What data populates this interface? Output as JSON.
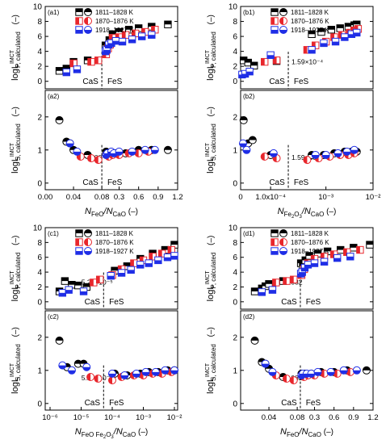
{
  "figure": {
    "legend_entries": [
      "1811–1828 K",
      "1870–1876 K",
      "1918–1927 K"
    ],
    "legend_colors": [
      "#000000",
      "#e8262c",
      "#1f2ee6"
    ],
    "region_labels": [
      "CaS",
      "FeS"
    ],
    "y_unit": "(–)",
    "ylabel_P_base": "logL",
    "ylabel_P_sup": "IMCT",
    "ylabel_P_sub": "P, calculated",
    "ylabel_S_base": "logL",
    "ylabel_S_sup": "IMCT",
    "ylabel_S_sub": "S, calculated",
    "xlabels": {
      "a": {
        "n1": "N",
        "s1": "FeO",
        "mid": "/N",
        "s2": "CaO",
        "unit": "(–)"
      },
      "b": {
        "n1": "N",
        "s1": "Fe",
        "s1a": "2",
        "s1b": "O",
        "s1c": "3",
        "mid": "/N",
        "s2": "CaO",
        "unit": "(–)"
      },
      "c": {
        "n1": "N",
        "s1": "FeO Fe",
        "s1a": "2",
        "s1b": "O",
        "s1c": "3",
        "mid": "/N",
        "s2": "CaO",
        "unit": "(–)"
      },
      "d": {
        "n1": "N",
        "s1": "FeO",
        "mid": "/N",
        "s2": "CaO",
        "unit": "(–)"
      }
    }
  },
  "chart_data": [
    {
      "panel": "a1",
      "type": "scatter",
      "ylim": [
        -1,
        10
      ],
      "yticks": [
        0,
        2,
        4,
        6,
        8,
        10
      ],
      "annotation": "0.08",
      "series": [
        {
          "name": "1811–1828 K",
          "x": [
            0.02,
            0.03,
            0.04,
            0.06,
            0.09,
            0.12,
            0.15,
            0.2,
            0.3,
            0.45,
            0.6,
            0.8,
            1.05
          ],
          "y": [
            1.4,
            1.7,
            2.6,
            2.8,
            4.8,
            4.6,
            5.5,
            6.3,
            6.6,
            6.9,
            7.1,
            7.3,
            7.6
          ]
        },
        {
          "name": "1870–1876 K",
          "x": [
            0.04,
            0.065,
            0.075,
            0.1,
            0.13,
            0.16,
            0.2,
            0.3,
            0.4,
            0.55,
            0.7,
            0.85
          ],
          "y": [
            2.4,
            2.6,
            2.8,
            3.6,
            4.4,
            4.9,
            5.8,
            5.9,
            6.2,
            6.4,
            6.6,
            6.9
          ]
        },
        {
          "name": "1918–1927 K",
          "x": [
            0.03,
            0.045,
            0.09,
            0.11,
            0.14,
            0.18,
            0.25,
            0.35,
            0.5,
            0.65,
            0.8
          ],
          "y": [
            1.2,
            1.6,
            4.0,
            4.2,
            4.9,
            5.1,
            5.4,
            5.3,
            5.6,
            6.0,
            6.2
          ]
        }
      ]
    },
    {
      "panel": "a2",
      "type": "scatter",
      "ylim": [
        -0.2,
        2.8
      ],
      "yticks": [
        0,
        1,
        2
      ],
      "annotation": "0.08",
      "xticklabels": [
        "0.00",
        "0.04",
        "0.08",
        "0.3",
        "0.6",
        "0.9",
        "1.2"
      ],
      "series": [
        {
          "name": "1811–1828 K",
          "x": [
            0.02,
            0.03,
            0.035,
            0.04,
            0.06,
            0.1,
            0.15,
            0.25,
            0.4,
            0.6,
            0.8,
            1.05
          ],
          "y": [
            1.9,
            1.25,
            1.2,
            1.0,
            0.85,
            0.95,
            0.9,
            0.9,
            0.9,
            1.0,
            1.0,
            1.0
          ]
        },
        {
          "name": "1870–1876 K",
          "x": [
            0.05,
            0.065,
            0.075,
            0.1,
            0.14,
            0.2,
            0.3,
            0.45,
            0.6,
            0.75
          ],
          "y": [
            0.8,
            0.75,
            0.7,
            0.85,
            0.8,
            0.85,
            0.85,
            0.9,
            0.9,
            0.95
          ]
        },
        {
          "name": "1918–1927 K",
          "x": [
            0.035,
            0.045,
            0.1,
            0.12,
            0.18,
            0.22,
            0.3,
            0.5,
            0.7,
            0.85
          ],
          "y": [
            1.2,
            0.95,
            0.85,
            0.9,
            0.95,
            0.9,
            0.95,
            0.95,
            1.0,
            1.0
          ]
        }
      ]
    },
    {
      "panel": "b1",
      "type": "scatter",
      "ylim": [
        -1,
        10
      ],
      "yticks": [
        0,
        2,
        4,
        6,
        8,
        10
      ],
      "annotation": "1.59×10⁻⁴",
      "series": [
        {
          "name": "1811–1828 K",
          "x": [
            1e-05,
            2.5e-05,
            4.5e-05,
            0.00012,
            0.0005,
            0.0008,
            0.0013,
            0.002,
            0.003,
            0.004,
            0.0045
          ],
          "y": [
            2.8,
            2.5,
            2.1,
            2.7,
            6.3,
            6.6,
            6.9,
            7.1,
            7.3,
            7.5,
            7.6
          ]
        },
        {
          "name": "1870–1876 K",
          "x": [
            8e-05,
            0.00012,
            0.0004,
            0.0006,
            0.001,
            0.0015,
            0.0022,
            0.0032,
            0.004,
            0.0048
          ],
          "y": [
            2.6,
            2.8,
            4.2,
            4.8,
            5.3,
            5.9,
            6.2,
            6.5,
            6.8,
            7.0
          ]
        },
        {
          "name": "1918–1927 K",
          "x": [
            5e-06,
            1.5e-05,
            3e-05,
            0.0001,
            0.0005,
            0.0009,
            0.0016,
            0.0025,
            0.0035,
            0.0045
          ],
          "y": [
            0.9,
            1.0,
            1.3,
            3.5,
            4.2,
            5.1,
            5.3,
            5.9,
            6.3,
            6.5
          ]
        }
      ]
    },
    {
      "panel": "b2",
      "type": "scatter",
      "ylim": [
        -0.2,
        2.8
      ],
      "yticks": [
        0,
        1,
        2
      ],
      "annotation": "1.59×10⁻⁴",
      "xticklabels": [
        "0",
        "1.0x10⁻⁴",
        "10⁻³",
        "10⁻²"
      ],
      "series": [
        {
          "name": "1811–1828 K",
          "x": [
            1e-05,
            2.5e-05,
            4e-05,
            0.0001,
            0.0005,
            0.0009,
            0.0015,
            0.0025,
            0.0035,
            0.0045
          ],
          "y": [
            1.9,
            1.2,
            1.3,
            0.85,
            0.85,
            0.85,
            0.9,
            0.95,
            0.95,
            0.95
          ]
        },
        {
          "name": "1870–1876 K",
          "x": [
            8e-05,
            0.00012,
            0.0004,
            0.0007,
            0.0012,
            0.002,
            0.003,
            0.004
          ],
          "y": [
            0.8,
            0.75,
            0.7,
            0.75,
            0.8,
            0.85,
            0.85,
            0.9
          ]
        },
        {
          "name": "1918–1927 K",
          "x": [
            8e-06,
            2e-05,
            0.00011,
            0.0006,
            0.001,
            0.0018,
            0.0028,
            0.004
          ],
          "y": [
            1.2,
            1.0,
            0.9,
            0.85,
            0.85,
            0.9,
            0.95,
            1.0
          ]
        }
      ]
    },
    {
      "panel": "c1",
      "type": "scatter",
      "ylim": [
        -1,
        10
      ],
      "yticks": [
        0,
        2,
        4,
        6,
        8,
        10
      ],
      "annotation": "5.27×10⁻⁵",
      "series": [
        {
          "name": "1811–1828 K",
          "x": [
            2e-06,
            3e-06,
            5e-06,
            8e-06,
            1.5e-05,
            0.00012,
            0.0003,
            0.0008,
            0.002,
            0.005,
            0.01
          ],
          "y": [
            1.4,
            2.8,
            2.3,
            2.2,
            2.0,
            4.2,
            4.8,
            5.8,
            6.5,
            7.0,
            7.7
          ]
        },
        {
          "name": "1870–1876 K",
          "x": [
            2.5e-05,
            4e-05,
            0.0001,
            0.0002,
            0.0005,
            0.001,
            0.002,
            0.004,
            0.008
          ],
          "y": [
            2.6,
            3.0,
            3.6,
            4.4,
            5.2,
            5.6,
            6.1,
            6.5,
            7.0
          ]
        },
        {
          "name": "1918–1927 K",
          "x": [
            2.5e-06,
            4e-06,
            1.2e-05,
            9e-05,
            0.0002,
            0.0004,
            0.0008,
            0.0015,
            0.003,
            0.006,
            0.01
          ],
          "y": [
            1.2,
            1.6,
            1.4,
            3.5,
            3.9,
            4.3,
            5.0,
            5.2,
            5.6,
            6.0,
            6.2
          ]
        }
      ]
    },
    {
      "panel": "c2",
      "type": "scatter",
      "ylim": [
        -0.2,
        2.8
      ],
      "yticks": [
        0,
        1,
        2
      ],
      "annotation": "5.27×10⁻⁵",
      "xticklabels": [
        "10⁻⁶",
        "10⁻⁵",
        "10⁻⁴",
        "10⁻³",
        "10⁻²"
      ],
      "series": [
        {
          "name": "1811–1828 K",
          "x": [
            2e-06,
            3.5e-06,
            8e-06,
            1.2e-05,
            0.00012,
            0.0003,
            0.0008,
            0.0015,
            0.003,
            0.006,
            0.01
          ],
          "y": [
            1.9,
            1.1,
            1.2,
            1.2,
            0.9,
            0.85,
            0.9,
            0.95,
            0.95,
            1.0,
            1.0
          ]
        },
        {
          "name": "1870–1876 K",
          "x": [
            2e-05,
            3.5e-05,
            0.0001,
            0.0002,
            0.0005,
            0.001,
            0.002,
            0.004,
            0.008
          ],
          "y": [
            0.8,
            0.75,
            0.7,
            0.8,
            0.85,
            0.85,
            0.9,
            0.9,
            0.95
          ]
        },
        {
          "name": "1918–1927 K",
          "x": [
            2.5e-06,
            5e-06,
            1.5e-05,
            0.0001,
            0.00025,
            0.0006,
            0.0012,
            0.0025,
            0.005,
            0.01
          ],
          "y": [
            1.15,
            1.0,
            1.1,
            0.9,
            0.85,
            0.9,
            0.95,
            0.95,
            1.0,
            1.0
          ]
        }
      ]
    },
    {
      "panel": "d1",
      "type": "scatter",
      "ylim": [
        -1,
        10
      ],
      "yticks": [
        0,
        2,
        4,
        6,
        8,
        10
      ],
      "annotation": "0.082",
      "series": [
        {
          "name": "1811–1828 K",
          "x": [
            0.02,
            0.03,
            0.035,
            0.04,
            0.06,
            0.09,
            0.12,
            0.16,
            0.22,
            0.35,
            0.5,
            0.7,
            0.9,
            1.15
          ],
          "y": [
            1.4,
            1.8,
            2.1,
            2.4,
            2.8,
            5.2,
            4.8,
            5.6,
            6.2,
            6.5,
            6.8,
            7.0,
            7.3,
            7.7
          ]
        },
        {
          "name": "1870–1876 K",
          "x": [
            0.05,
            0.065,
            0.075,
            0.1,
            0.14,
            0.2,
            0.3,
            0.45,
            0.6,
            0.8,
            1.0
          ],
          "y": [
            2.6,
            2.8,
            3.0,
            3.6,
            4.4,
            5.2,
            5.8,
            6.1,
            6.4,
            6.7,
            7.0
          ]
        },
        {
          "name": "1918–1927 K",
          "x": [
            0.03,
            0.045,
            0.09,
            0.11,
            0.15,
            0.2,
            0.3,
            0.45,
            0.65,
            0.85
          ],
          "y": [
            1.3,
            1.6,
            3.8,
            4.0,
            4.6,
            5.0,
            5.2,
            5.4,
            5.9,
            6.1
          ]
        }
      ]
    },
    {
      "panel": "d2",
      "type": "scatter",
      "ylim": [
        -0.2,
        2.8
      ],
      "yticks": [
        0,
        1,
        2
      ],
      "annotation": "0.082",
      "xticklabels": [
        "0.04",
        "0.08",
        "0.3",
        "0.6",
        "0.9",
        "1.2"
      ],
      "series": [
        {
          "name": "1811–1828 K",
          "x": [
            0.02,
            0.03,
            0.035,
            0.04,
            0.06,
            0.1,
            0.15,
            0.25,
            0.4,
            0.6,
            0.8,
            1.1
          ],
          "y": [
            1.9,
            1.25,
            1.2,
            1.05,
            0.8,
            0.9,
            0.9,
            0.9,
            0.95,
            0.95,
            1.0,
            1.0
          ]
        },
        {
          "name": "1870–1876 K",
          "x": [
            0.05,
            0.065,
            0.075,
            0.1,
            0.14,
            0.2,
            0.3,
            0.45,
            0.65,
            0.85
          ],
          "y": [
            0.85,
            0.75,
            0.7,
            0.85,
            0.8,
            0.85,
            0.85,
            0.9,
            0.9,
            0.95
          ]
        },
        {
          "name": "1918–1927 K",
          "x": [
            0.035,
            0.045,
            0.1,
            0.12,
            0.18,
            0.25,
            0.35,
            0.55,
            0.75,
            0.95
          ],
          "y": [
            1.2,
            0.95,
            0.85,
            0.9,
            0.9,
            0.9,
            0.95,
            0.95,
            1.0,
            1.0
          ]
        }
      ]
    }
  ]
}
